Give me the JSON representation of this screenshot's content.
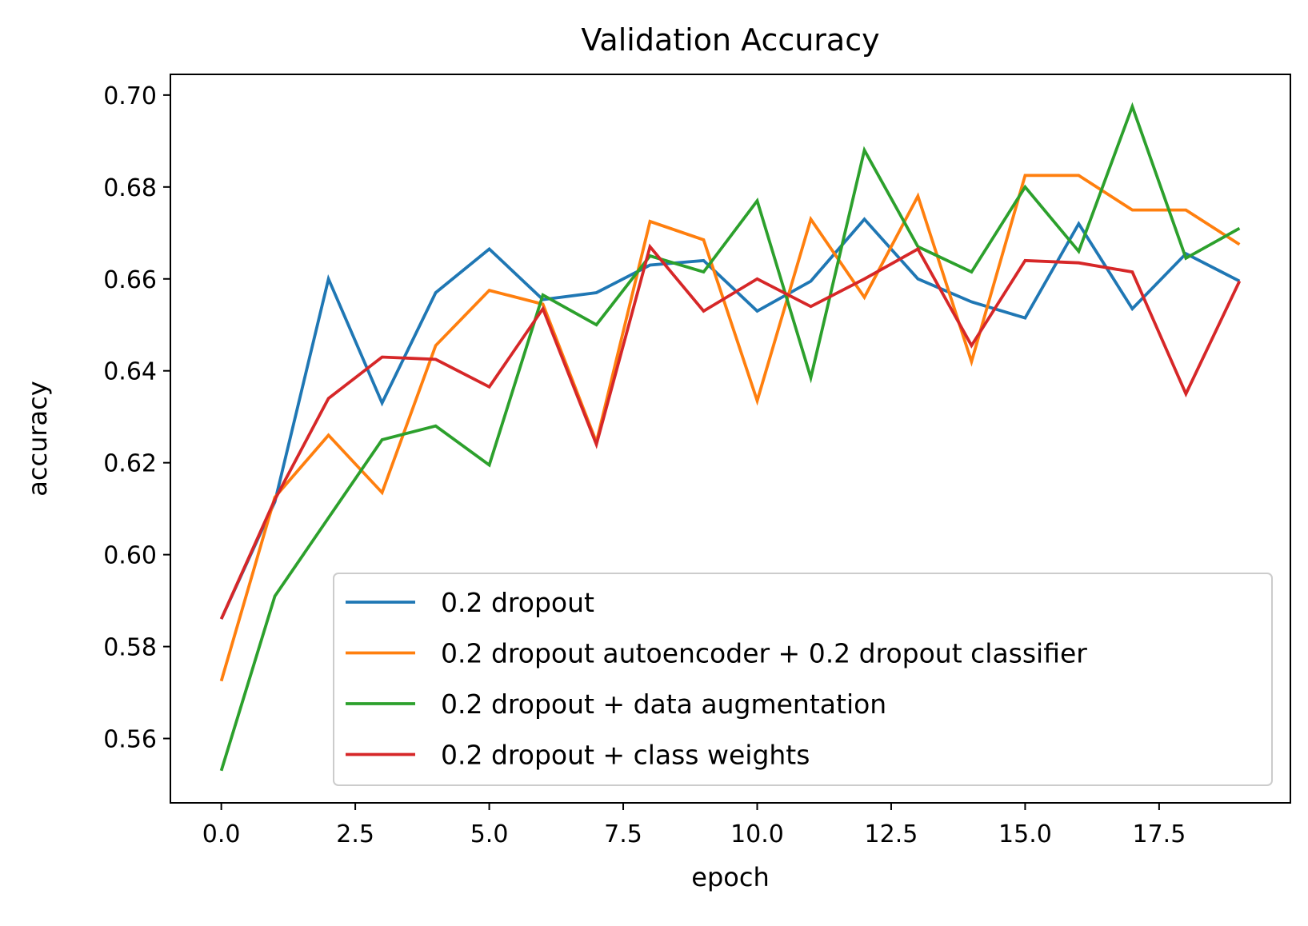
{
  "chart_data": {
    "type": "line",
    "title": "Validation Accuracy",
    "xlabel": "epoch",
    "ylabel": "accuracy",
    "xlim": [
      -0.95,
      19.95
    ],
    "ylim": [
      0.546,
      0.7045
    ],
    "x_ticks": [
      0.0,
      2.5,
      5.0,
      7.5,
      10.0,
      12.5,
      15.0,
      17.5
    ],
    "x_tick_labels": [
      "0.0",
      "2.5",
      "5.0",
      "7.5",
      "10.0",
      "12.5",
      "15.0",
      "17.5"
    ],
    "y_ticks": [
      0.56,
      0.58,
      0.6,
      0.62,
      0.64,
      0.66,
      0.68,
      0.7
    ],
    "y_tick_labels": [
      "0.56",
      "0.58",
      "0.60",
      "0.62",
      "0.64",
      "0.66",
      "0.68",
      "0.70"
    ],
    "legend_position": "lower-right",
    "grid": false,
    "x": [
      0,
      1,
      2,
      3,
      4,
      5,
      6,
      7,
      8,
      9,
      10,
      11,
      12,
      13,
      14,
      15,
      16,
      17,
      18,
      19
    ],
    "series": [
      {
        "name": "0.2 dropout",
        "color": "#1f77b4",
        "values": [
          0.586,
          0.6115,
          0.66,
          0.633,
          0.657,
          0.6665,
          0.6555,
          0.657,
          0.663,
          0.664,
          0.653,
          0.6595,
          0.673,
          0.66,
          0.655,
          0.6515,
          0.672,
          0.6535,
          0.6655,
          0.6595
        ]
      },
      {
        "name": "0.2 dropout autoencoder + 0.2 dropout classifier",
        "color": "#ff7f0e",
        "values": [
          0.5725,
          0.6125,
          0.626,
          0.6135,
          0.6455,
          0.6575,
          0.6545,
          0.6245,
          0.6725,
          0.6685,
          0.6335,
          0.673,
          0.656,
          0.678,
          0.642,
          0.6825,
          0.6825,
          0.675,
          0.675,
          0.6675
        ]
      },
      {
        "name": "0.2 dropout + data augmentation",
        "color": "#2ca02c",
        "values": [
          0.553,
          0.591,
          0.608,
          0.625,
          0.628,
          0.6195,
          0.6565,
          0.65,
          0.665,
          0.6615,
          0.677,
          0.6385,
          0.688,
          0.667,
          0.6615,
          0.68,
          0.666,
          0.6975,
          0.6645,
          0.671
        ]
      },
      {
        "name": "0.2 dropout + class weights",
        "color": "#d62728",
        "values": [
          0.586,
          0.612,
          0.634,
          0.643,
          0.6425,
          0.6365,
          0.6535,
          0.624,
          0.667,
          0.653,
          0.66,
          0.654,
          0.66,
          0.6665,
          0.6455,
          0.664,
          0.6635,
          0.6615,
          0.635,
          0.6595
        ]
      }
    ]
  }
}
